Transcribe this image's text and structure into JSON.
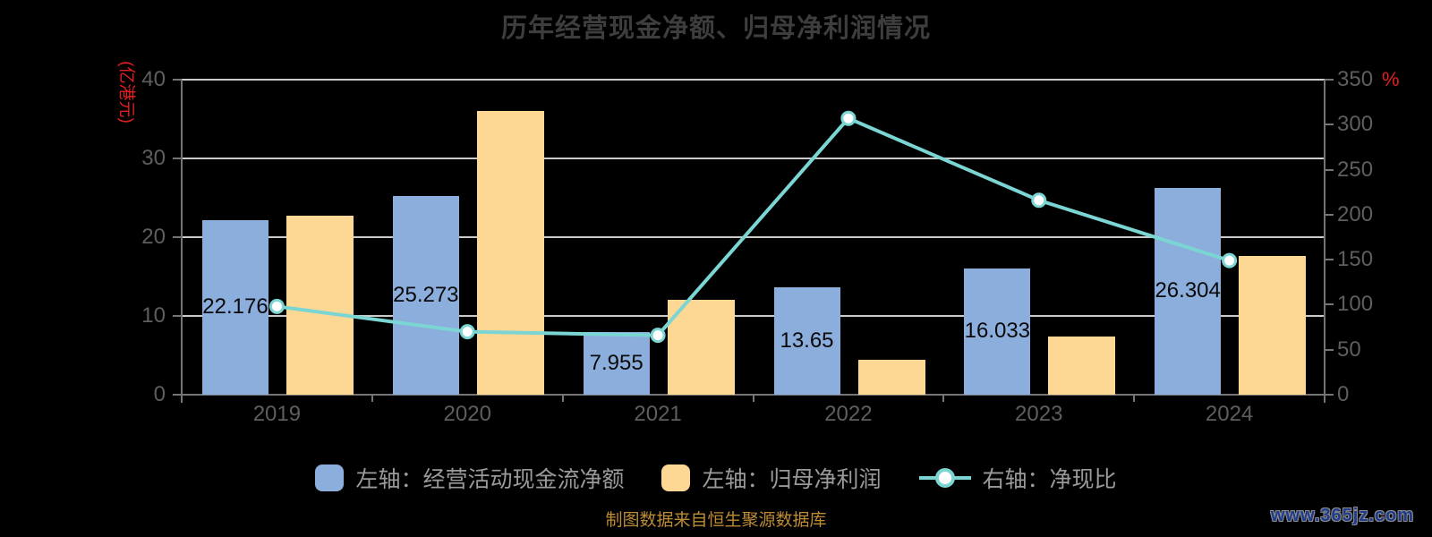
{
  "chart_data": {
    "type": "bar",
    "title": "历年经营现金净额、归母净利润情况",
    "categories": [
      "2019",
      "2020",
      "2021",
      "2022",
      "2023",
      "2024"
    ],
    "series": [
      {
        "name": "左轴：经营活动现金流净额",
        "type": "bar",
        "axis": "left",
        "color": "#8CAEDD",
        "values": [
          22.176,
          25.273,
          7.955,
          13.65,
          16.033,
          26.304
        ],
        "labels": [
          "22.176",
          "25.273",
          "7.955",
          "13.65",
          "16.033",
          "26.304"
        ]
      },
      {
        "name": "左轴：归母净利润",
        "type": "bar",
        "axis": "left",
        "color": "#FDD794",
        "values": [
          22.7,
          36.0,
          12.0,
          4.45,
          7.4,
          17.6
        ]
      },
      {
        "name": "右轴：净现比",
        "type": "line",
        "axis": "right",
        "color": "#7BD6D3",
        "values": [
          98,
          70,
          66,
          307,
          216,
          149
        ]
      }
    ],
    "left_axis": {
      "unit": "(亿港元)",
      "min": 0,
      "max": 40,
      "ticks": [
        0,
        10,
        20,
        30,
        40
      ]
    },
    "right_axis": {
      "unit": "%",
      "min": 0,
      "max": 350,
      "ticks": [
        0,
        50,
        100,
        150,
        200,
        250,
        300,
        350
      ]
    },
    "grid": true,
    "legend_position": "bottom"
  },
  "footer": {
    "source": "制图数据来自恒生聚源数据库",
    "watermark": "www.365jz.com"
  }
}
